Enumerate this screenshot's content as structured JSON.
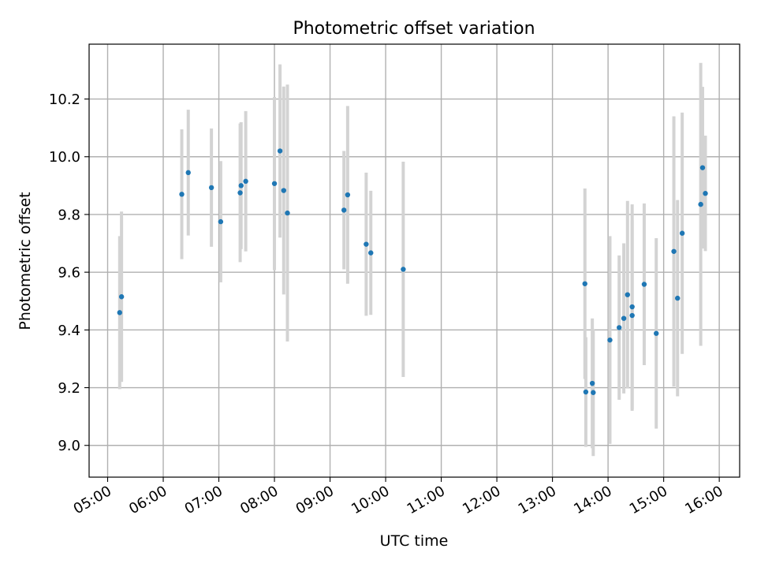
{
  "chart_data": {
    "type": "scatter",
    "title": "Photometric offset variation",
    "xlabel": "UTC time",
    "ylabel": "Photometric offset",
    "xlim": [
      "04:40",
      "16:22"
    ],
    "ylim": [
      8.89,
      10.39
    ],
    "x_ticks": [
      "05:00",
      "06:00",
      "07:00",
      "08:00",
      "09:00",
      "10:00",
      "11:00",
      "12:00",
      "13:00",
      "14:00",
      "15:00",
      "16:00"
    ],
    "y_ticks": [
      "9.0",
      "9.2",
      "9.4",
      "9.6",
      "9.8",
      "10.0",
      "10.2"
    ],
    "grid": true,
    "legend": "none",
    "colors": {
      "points": "#1f77b4",
      "error_bars": "#d3d3d3",
      "grid": "#b0b0b0"
    },
    "series": [
      {
        "points": [
          {
            "t": "05:13",
            "y": 9.46,
            "err": 0.265
          },
          {
            "t": "05:15",
            "y": 9.515,
            "err": 0.295
          },
          {
            "t": "06:20",
            "y": 9.87,
            "err": 0.225
          },
          {
            "t": "06:27",
            "y": 9.945,
            "err": 0.218
          },
          {
            "t": "06:52",
            "y": 9.893,
            "err": 0.205
          },
          {
            "t": "07:02",
            "y": 9.775,
            "err": 0.21
          },
          {
            "t": "07:23",
            "y": 9.875,
            "err": 0.24
          },
          {
            "t": "07:24",
            "y": 9.9,
            "err": 0.22
          },
          {
            "t": "07:29",
            "y": 9.915,
            "err": 0.243
          },
          {
            "t": "08:00",
            "y": 9.907,
            "err": 0.3
          },
          {
            "t": "08:06",
            "y": 10.02,
            "err": 0.3
          },
          {
            "t": "08:10",
            "y": 9.883,
            "err": 0.36
          },
          {
            "t": "08:14",
            "y": 9.805,
            "err": 0.445
          },
          {
            "t": "09:15",
            "y": 9.815,
            "err": 0.205
          },
          {
            "t": "09:19",
            "y": 9.868,
            "err": 0.308
          },
          {
            "t": "09:39",
            "y": 9.697,
            "err": 0.248
          },
          {
            "t": "09:44",
            "y": 9.667,
            "err": 0.215
          },
          {
            "t": "10:19",
            "y": 9.61,
            "err": 0.373
          },
          {
            "t": "13:35",
            "y": 9.56,
            "err": 0.33
          },
          {
            "t": "13:36",
            "y": 9.185,
            "err": 0.19
          },
          {
            "t": "13:43",
            "y": 9.215,
            "err": 0.225
          },
          {
            "t": "13:44",
            "y": 9.183,
            "err": 0.22
          },
          {
            "t": "14:02",
            "y": 9.365,
            "err": 0.36
          },
          {
            "t": "14:12",
            "y": 9.408,
            "err": 0.25
          },
          {
            "t": "14:17",
            "y": 9.44,
            "err": 0.26
          },
          {
            "t": "14:21",
            "y": 9.522,
            "err": 0.325
          },
          {
            "t": "14:26",
            "y": 9.48,
            "err": 0.355
          },
          {
            "t": "14:26",
            "y": 9.45,
            "err": 0.33
          },
          {
            "t": "14:39",
            "y": 9.558,
            "err": 0.28
          },
          {
            "t": "14:52",
            "y": 9.388,
            "err": 0.33
          },
          {
            "t": "15:11",
            "y": 9.672,
            "err": 0.468
          },
          {
            "t": "15:15",
            "y": 9.51,
            "err": 0.34
          },
          {
            "t": "15:20",
            "y": 9.735,
            "err": 0.418
          },
          {
            "t": "15:40",
            "y": 9.835,
            "err": 0.49
          },
          {
            "t": "15:42",
            "y": 9.962,
            "err": 0.28
          },
          {
            "t": "15:45",
            "y": 9.873,
            "err": 0.2
          }
        ]
      }
    ]
  }
}
